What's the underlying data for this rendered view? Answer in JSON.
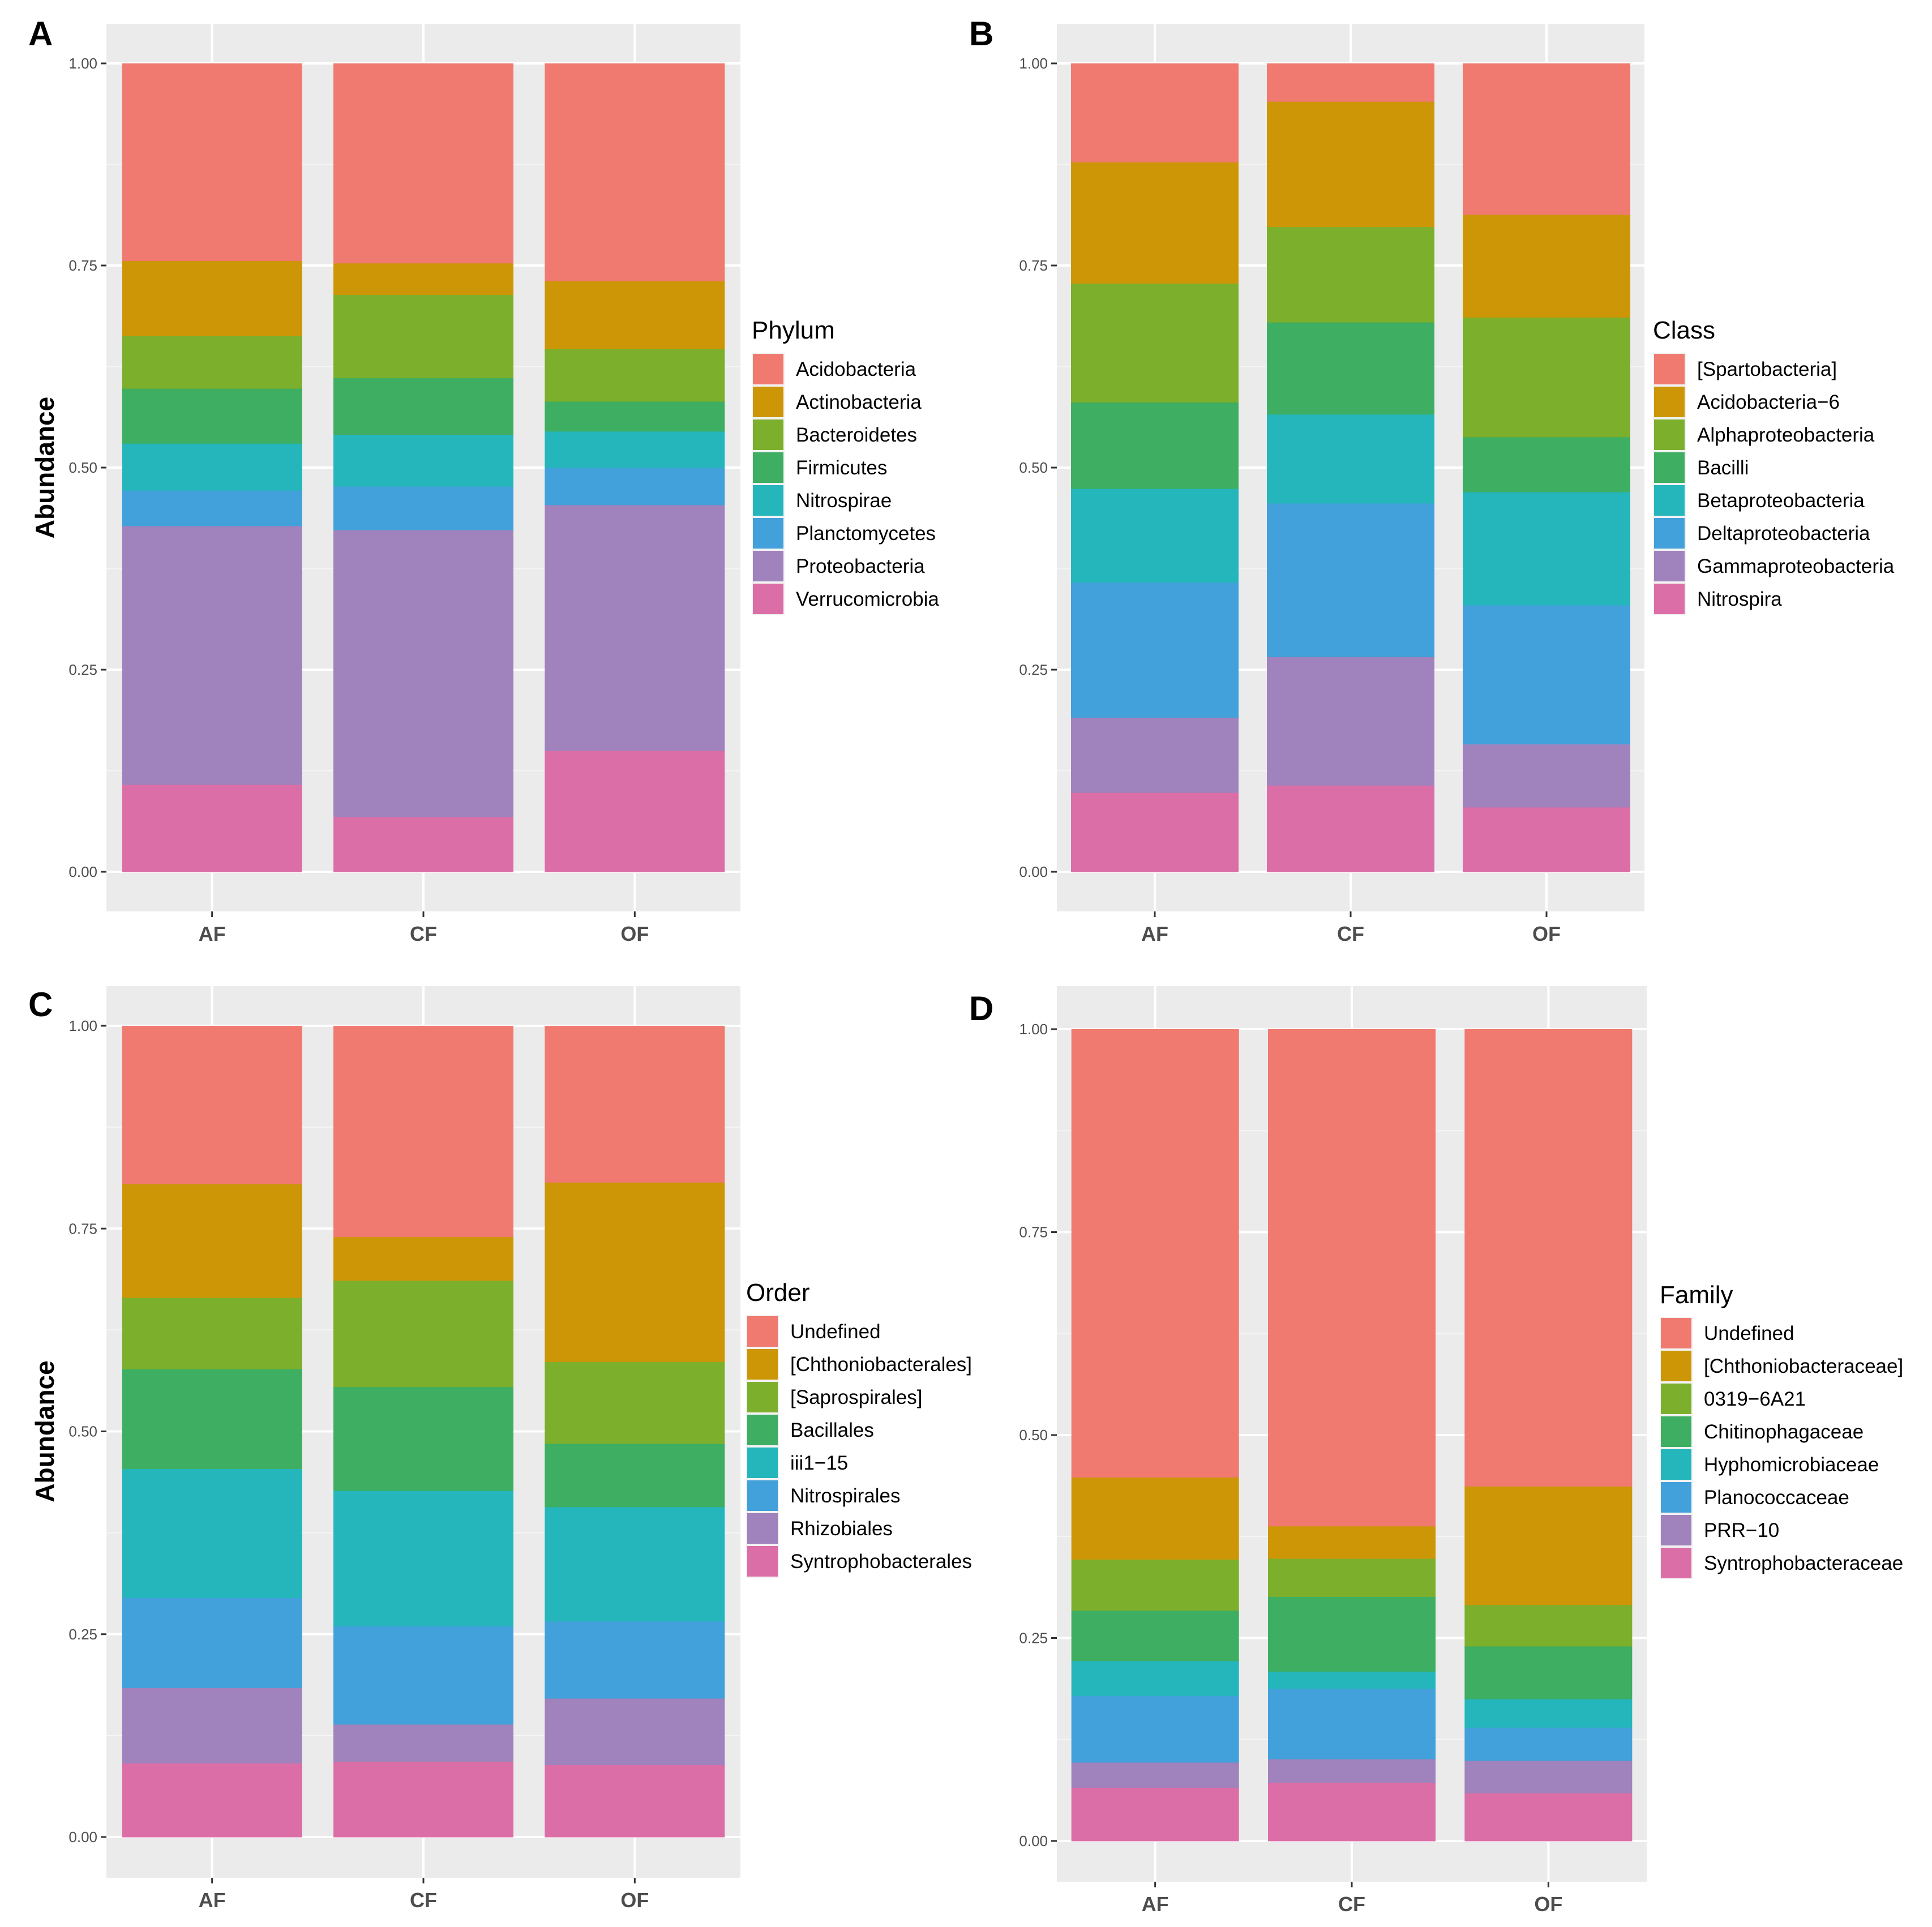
{
  "chart_data": [
    {
      "type": "bar",
      "stacked": true,
      "panel": "A",
      "categories": [
        "AF",
        "CF",
        "OF"
      ],
      "ylabel": "Abundance",
      "ylim": [
        0,
        1
      ],
      "yticks": [
        "0.00",
        "0.25",
        "0.50",
        "0.75",
        "1.00"
      ],
      "legend_title": "Phylum",
      "legend_position": "right",
      "series": [
        {
          "name": "Acidobacteria",
          "color": "#F07A6F",
          "values": [
            0.244,
            0.247,
            0.269
          ]
        },
        {
          "name": "Actinobacteria",
          "color": "#CC9606",
          "values": [
            0.093,
            0.039,
            0.084
          ]
        },
        {
          "name": "Bacteroidetes",
          "color": "#7CAF2C",
          "values": [
            0.065,
            0.103,
            0.065
          ]
        },
        {
          "name": "Firmicutes",
          "color": "#3DAE62",
          "values": [
            0.068,
            0.07,
            0.037
          ]
        },
        {
          "name": "Nitrospirae",
          "color": "#25B6BC",
          "values": [
            0.058,
            0.064,
            0.045
          ]
        },
        {
          "name": "Planctomycetes",
          "color": "#42A0DA",
          "values": [
            0.044,
            0.054,
            0.046
          ]
        },
        {
          "name": "Proteobacteria",
          "color": "#A082BC",
          "values": [
            0.32,
            0.355,
            0.304
          ]
        },
        {
          "name": "Verrucomicrobia",
          "color": "#DC6EA7",
          "values": [
            0.108,
            0.068,
            0.15
          ]
        }
      ]
    },
    {
      "type": "bar",
      "stacked": true,
      "panel": "B",
      "categories": [
        "AF",
        "CF",
        "OF"
      ],
      "ylabel": "",
      "ylim": [
        0,
        1
      ],
      "yticks": [
        "0.00",
        "0.25",
        "0.50",
        "0.75",
        "1.00"
      ],
      "legend_title": "Class",
      "legend_position": "right",
      "series": [
        {
          "name": "[Spartobacteria]",
          "color": "#F07A6F",
          "values": [
            0.122,
            0.047,
            0.187
          ]
        },
        {
          "name": "Acidobacteria−6",
          "color": "#CC9606",
          "values": [
            0.15,
            0.155,
            0.127
          ]
        },
        {
          "name": "Alphaproteobacteria",
          "color": "#7CAF2C",
          "values": [
            0.147,
            0.118,
            0.148
          ]
        },
        {
          "name": "Bacilli",
          "color": "#3DAE62",
          "values": [
            0.107,
            0.114,
            0.068
          ]
        },
        {
          "name": "Betaproteobacteria",
          "color": "#25B6BC",
          "values": [
            0.116,
            0.11,
            0.14
          ]
        },
        {
          "name": "Deltaproteobacteria",
          "color": "#42A0DA",
          "values": [
            0.167,
            0.19,
            0.172
          ]
        },
        {
          "name": "Gammaproteobacteria",
          "color": "#A082BC",
          "values": [
            0.093,
            0.159,
            0.078
          ]
        },
        {
          "name": "Nitrospira",
          "color": "#DC6EA7",
          "values": [
            0.098,
            0.107,
            0.08
          ]
        }
      ]
    },
    {
      "type": "bar",
      "stacked": true,
      "panel": "C",
      "categories": [
        "AF",
        "CF",
        "OF"
      ],
      "ylabel": "Abundance",
      "ylim": [
        0,
        1
      ],
      "yticks": [
        "0.00",
        "0.25",
        "0.50",
        "0.75",
        "1.00"
      ],
      "legend_title": "Order",
      "legend_position": "right",
      "series": [
        {
          "name": "Undefined",
          "color": "#F07A6F",
          "values": [
            0.195,
            0.26,
            0.193
          ]
        },
        {
          "name": "[Chthoniobacterales]",
          "color": "#CC9606",
          "values": [
            0.14,
            0.054,
            0.221
          ]
        },
        {
          "name": "[Saprospirales]",
          "color": "#7CAF2C",
          "values": [
            0.088,
            0.131,
            0.101
          ]
        },
        {
          "name": "Bacillales",
          "color": "#3DAE62",
          "values": [
            0.123,
            0.128,
            0.078
          ]
        },
        {
          "name": "iii1−15",
          "color": "#25B6BC",
          "values": [
            0.159,
            0.167,
            0.141
          ]
        },
        {
          "name": "Nitrospirales",
          "color": "#42A0DA",
          "values": [
            0.111,
            0.121,
            0.095
          ]
        },
        {
          "name": "Rhizobiales",
          "color": "#A082BC",
          "values": [
            0.093,
            0.046,
            0.082
          ]
        },
        {
          "name": "Syntrophobacterales",
          "color": "#DC6EA7",
          "values": [
            0.091,
            0.093,
            0.089
          ]
        }
      ]
    },
    {
      "type": "bar",
      "stacked": true,
      "panel": "D",
      "categories": [
        "AF",
        "CF",
        "OF"
      ],
      "ylabel": "",
      "ylim": [
        0,
        1
      ],
      "yticks": [
        "0.00",
        "0.25",
        "0.50",
        "0.75",
        "1.00"
      ],
      "legend_title": "Family",
      "legend_position": "right",
      "series": [
        {
          "name": "Undefined",
          "color": "#F07A6F",
          "values": [
            0.552,
            0.612,
            0.563
          ]
        },
        {
          "name": "[Chthoniobacteraceae]",
          "color": "#CC9606",
          "values": [
            0.101,
            0.04,
            0.146
          ]
        },
        {
          "name": "0319−6A21",
          "color": "#7CAF2C",
          "values": [
            0.063,
            0.047,
            0.051
          ]
        },
        {
          "name": "Chitinophagaceae",
          "color": "#3DAE62",
          "values": [
            0.062,
            0.092,
            0.065
          ]
        },
        {
          "name": "Hyphomicrobiaceae",
          "color": "#25B6BC",
          "values": [
            0.043,
            0.021,
            0.035
          ]
        },
        {
          "name": "Planococcaceae",
          "color": "#42A0DA",
          "values": [
            0.082,
            0.087,
            0.041
          ]
        },
        {
          "name": "PRR−10",
          "color": "#A082BC",
          "values": [
            0.031,
            0.029,
            0.04
          ]
        },
        {
          "name": "Syntrophobacteraceae",
          "color": "#DC6EA7",
          "values": [
            0.066,
            0.072,
            0.059
          ]
        }
      ]
    }
  ]
}
